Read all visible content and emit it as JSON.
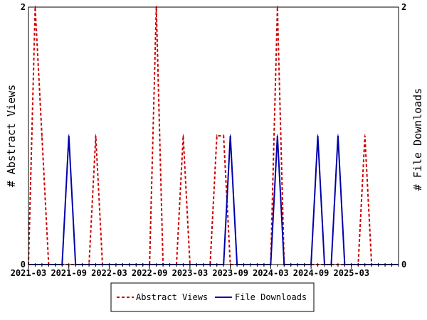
{
  "chart_data": {
    "type": "line",
    "x_tick_labels": [
      "2021-03",
      "2021-09",
      "2022-03",
      "2022-09",
      "2023-03",
      "2023-09",
      "2024-03",
      "2024-09",
      "2025-03"
    ],
    "x_tick_months": [
      "2021-03",
      "2021-09",
      "2022-03",
      "2022-09",
      "2023-03",
      "2023-09",
      "2024-03",
      "2024-09",
      "2025-03"
    ],
    "x_start": "2021-03",
    "x_end": "2025-10",
    "ylabel_left": "# Abstract Views",
    "ylabel_right": "# File Downloads",
    "ylim_left": [
      0,
      2
    ],
    "ylim_right": [
      0,
      2
    ],
    "y_tick_labels_left": [
      "0",
      "2"
    ],
    "y_tick_labels_right": [
      "0",
      "2"
    ],
    "grid": false,
    "legend_position": "bottom",
    "series": [
      {
        "name": "Abstract Views",
        "axis": "left",
        "color": "#cc0000",
        "style": "dashed",
        "points": [
          [
            "2021-03",
            0
          ],
          [
            "2021-04",
            2
          ],
          [
            "2021-05",
            1
          ],
          [
            "2021-06",
            0
          ],
          [
            "2021-07",
            0
          ],
          [
            "2021-08",
            0
          ],
          [
            "2021-09",
            0
          ],
          [
            "2021-10",
            0
          ],
          [
            "2021-11",
            0
          ],
          [
            "2021-12",
            0
          ],
          [
            "2022-01",
            1
          ],
          [
            "2022-02",
            0
          ],
          [
            "2022-03",
            0
          ],
          [
            "2022-04",
            0
          ],
          [
            "2022-05",
            0
          ],
          [
            "2022-06",
            0
          ],
          [
            "2022-07",
            0
          ],
          [
            "2022-08",
            0
          ],
          [
            "2022-09",
            0
          ],
          [
            "2022-10",
            2
          ],
          [
            "2022-11",
            0
          ],
          [
            "2022-12",
            0
          ],
          [
            "2023-01",
            0
          ],
          [
            "2023-02",
            1
          ],
          [
            "2023-03",
            0
          ],
          [
            "2023-04",
            0
          ],
          [
            "2023-05",
            0
          ],
          [
            "2023-06",
            0
          ],
          [
            "2023-07",
            1
          ],
          [
            "2023-08",
            1
          ],
          [
            "2023-09",
            0
          ],
          [
            "2023-10",
            0
          ],
          [
            "2023-11",
            0
          ],
          [
            "2023-12",
            0
          ],
          [
            "2024-01",
            0
          ],
          [
            "2024-02",
            0
          ],
          [
            "2024-03",
            0
          ],
          [
            "2024-04",
            2
          ],
          [
            "2024-05",
            0
          ],
          [
            "2024-06",
            0
          ],
          [
            "2024-07",
            0
          ],
          [
            "2024-08",
            0
          ],
          [
            "2024-09",
            0
          ],
          [
            "2024-10",
            0
          ],
          [
            "2024-11",
            0
          ],
          [
            "2024-12",
            0
          ],
          [
            "2025-01",
            0
          ],
          [
            "2025-02",
            0
          ],
          [
            "2025-03",
            0
          ],
          [
            "2025-04",
            0
          ],
          [
            "2025-05",
            1
          ],
          [
            "2025-06",
            0
          ],
          [
            "2025-07",
            0
          ],
          [
            "2025-08",
            0
          ],
          [
            "2025-09",
            0
          ],
          [
            "2025-10",
            0
          ]
        ]
      },
      {
        "name": "File Downloads",
        "axis": "right",
        "color": "#0000aa",
        "style": "solid",
        "points": [
          [
            "2021-03",
            0
          ],
          [
            "2021-04",
            0
          ],
          [
            "2021-05",
            0
          ],
          [
            "2021-06",
            0
          ],
          [
            "2021-07",
            0
          ],
          [
            "2021-08",
            0
          ],
          [
            "2021-09",
            1
          ],
          [
            "2021-10",
            0
          ],
          [
            "2021-11",
            0
          ],
          [
            "2021-12",
            0
          ],
          [
            "2022-01",
            0
          ],
          [
            "2022-02",
            0
          ],
          [
            "2022-03",
            0
          ],
          [
            "2022-04",
            0
          ],
          [
            "2022-05",
            0
          ],
          [
            "2022-06",
            0
          ],
          [
            "2022-07",
            0
          ],
          [
            "2022-08",
            0
          ],
          [
            "2022-09",
            0
          ],
          [
            "2022-10",
            0
          ],
          [
            "2022-11",
            0
          ],
          [
            "2022-12",
            0
          ],
          [
            "2023-01",
            0
          ],
          [
            "2023-02",
            0
          ],
          [
            "2023-03",
            0
          ],
          [
            "2023-04",
            0
          ],
          [
            "2023-05",
            0
          ],
          [
            "2023-06",
            0
          ],
          [
            "2023-07",
            0
          ],
          [
            "2023-08",
            0
          ],
          [
            "2023-09",
            1
          ],
          [
            "2023-10",
            0
          ],
          [
            "2023-11",
            0
          ],
          [
            "2023-12",
            0
          ],
          [
            "2024-01",
            0
          ],
          [
            "2024-02",
            0
          ],
          [
            "2024-03",
            0
          ],
          [
            "2024-04",
            1
          ],
          [
            "2024-05",
            0
          ],
          [
            "2024-06",
            0
          ],
          [
            "2024-07",
            0
          ],
          [
            "2024-08",
            0
          ],
          [
            "2024-09",
            0
          ],
          [
            "2024-10",
            1
          ],
          [
            "2024-11",
            0
          ],
          [
            "2024-12",
            0
          ],
          [
            "2025-01",
            1
          ],
          [
            "2025-02",
            0
          ],
          [
            "2025-03",
            0
          ],
          [
            "2025-04",
            0
          ],
          [
            "2025-05",
            0
          ],
          [
            "2025-06",
            0
          ],
          [
            "2025-07",
            0
          ],
          [
            "2025-08",
            0
          ],
          [
            "2025-09",
            0
          ],
          [
            "2025-10",
            0
          ]
        ]
      }
    ]
  }
}
